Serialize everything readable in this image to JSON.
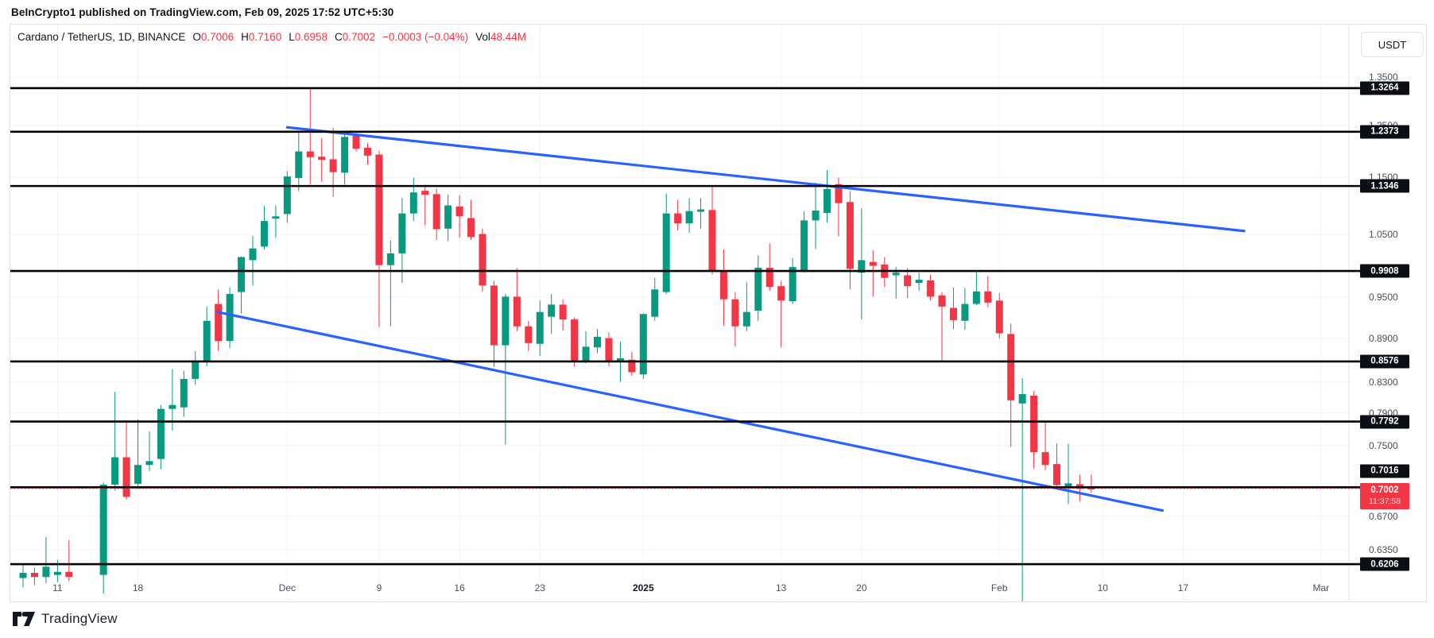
{
  "header": {
    "title": "BeInCrypto1 published on TradingView.com, Feb 09, 2025 17:52 UTC+5:30"
  },
  "attribution": {
    "brand": "TradingView"
  },
  "legend": {
    "title": "Cardano / TetherUS, 1D, BINANCE",
    "values": [
      {
        "label": "O",
        "value": "0.7006"
      },
      {
        "label": "H",
        "value": "0.7160"
      },
      {
        "label": "L",
        "value": "0.6958"
      },
      {
        "label": "C",
        "value": "0.7002"
      },
      {
        "label": "",
        "value": "−0.0003 (−0.04%)"
      },
      {
        "label": "Vol",
        "value": "48.44M"
      }
    ]
  },
  "price_scale": {
    "currency_button": "USDT",
    "ticks": [
      "1.3500",
      "1.2500",
      "1.1500",
      "1.0500",
      "0.9900",
      "0.9500",
      "0.8900",
      "0.8300",
      "0.7900",
      "0.7500",
      "0.6700",
      "0.6350"
    ],
    "current": {
      "price": "0.7002",
      "countdown": "11:37:58"
    }
  },
  "colors": {
    "up": "#089981",
    "down": "#f23645",
    "trendline": "#2962ff",
    "level": "#000000",
    "grid": "#f0f3fa",
    "border": "#e0e3eb",
    "current_line": "#f23645",
    "badge_bg": "#0c0e15"
  },
  "chart_data": {
    "type": "candlestick",
    "symbol": "ADAUSDT",
    "interval": "1D",
    "price_scale_type": "log",
    "visible_price_range": [
      0.5845,
      1.47
    ],
    "date_range": [
      "Nov 8 2024",
      "Mar 1 2025 (axis)"
    ],
    "grid": true,
    "time_labels": [
      {
        "label": "11",
        "day": 3
      },
      {
        "label": "18",
        "day": 10
      },
      {
        "label": "Dec",
        "day": 23
      },
      {
        "label": "9",
        "day": 31
      },
      {
        "label": "16",
        "day": 38
      },
      {
        "label": "23",
        "day": 45
      },
      {
        "label": "2025",
        "day": 54,
        "bold": true
      },
      {
        "label": "13",
        "day": 66
      },
      {
        "label": "20",
        "day": 73
      },
      {
        "label": "Feb",
        "day": 85
      },
      {
        "label": "10",
        "day": 94
      },
      {
        "label": "17",
        "day": 101
      },
      {
        "label": "Mar",
        "day": 113
      }
    ],
    "levels": [
      1.3264,
      1.2373,
      1.1346,
      0.9908,
      0.8576,
      0.7792,
      0.7016,
      0.6206
    ],
    "current_price": 0.7002,
    "trendlines": [
      {
        "name": "upper-descending",
        "d1": 23.0,
        "p1": 1.246,
        "d2": 106.3,
        "p2": 1.056
      },
      {
        "name": "lower-descending",
        "d1": 16.9,
        "p1": 0.928,
        "d2": 99.2,
        "p2": 0.676
      }
    ],
    "candles": [
      [
        "Nov 8",
        0.607,
        0.62,
        0.598,
        0.612
      ],
      [
        "Nov 9",
        0.612,
        0.617,
        0.6,
        0.608
      ],
      [
        "Nov 10",
        0.608,
        0.648,
        0.602,
        0.618
      ],
      [
        "Nov 11",
        0.61,
        0.625,
        0.603,
        0.613
      ],
      [
        "Nov 12",
        0.613,
        0.645,
        0.604,
        0.608
      ],
      [
        "Nov 13",
        0.582,
        0.584,
        0.556,
        0.565
      ],
      [
        "Nov 14",
        0.565,
        0.582,
        0.558,
        0.578
      ],
      [
        "Nov 15",
        0.61,
        0.707,
        0.592,
        0.7045
      ],
      [
        "Nov 16",
        0.7045,
        0.817,
        0.698,
        0.736
      ],
      [
        "Nov 17",
        0.736,
        0.778,
        0.688,
        0.691
      ],
      [
        "Nov 18",
        0.7055,
        0.782,
        0.7,
        0.727
      ],
      [
        "Nov 19",
        0.727,
        0.767,
        0.72,
        0.7315
      ],
      [
        "Nov 20",
        0.734,
        0.8,
        0.722,
        0.795
      ],
      [
        "Nov 21",
        0.795,
        0.847,
        0.768,
        0.8
      ],
      [
        "Nov 22",
        0.797,
        0.845,
        0.785,
        0.834
      ],
      [
        "Nov 23",
        0.834,
        0.872,
        0.826,
        0.858
      ],
      [
        "Nov 24",
        0.858,
        0.936,
        0.851,
        0.915
      ],
      [
        "Nov 25",
        0.94,
        0.962,
        0.872,
        0.886
      ],
      [
        "Nov 26",
        0.886,
        0.965,
        0.876,
        0.955
      ],
      [
        "Nov 27",
        0.958,
        1.014,
        0.926,
        1.013
      ],
      [
        "Nov 28",
        1.008,
        1.048,
        0.968,
        1.027
      ],
      [
        "Nov 29",
        1.03,
        1.099,
        1.025,
        1.073
      ],
      [
        "Nov 30",
        1.077,
        1.1,
        1.045,
        1.081
      ],
      [
        "Dec 1",
        1.085,
        1.162,
        1.07,
        1.152
      ],
      [
        "Dec 2",
        1.149,
        1.2373,
        1.125,
        1.199
      ],
      [
        "Dec 3",
        1.199,
        1.3264,
        1.137,
        1.188
      ],
      [
        "Dec 4",
        1.189,
        1.225,
        1.142,
        1.183
      ],
      [
        "Dec 5",
        1.184,
        1.245,
        1.115,
        1.16
      ],
      [
        "Dec 6",
        1.159,
        1.232,
        1.137,
        1.227
      ],
      [
        "Dec 7",
        1.229,
        1.235,
        1.199,
        1.204
      ],
      [
        "Dec 8",
        1.206,
        1.215,
        1.174,
        1.191
      ],
      [
        "Dec 9",
        1.193,
        1.2,
        0.906,
        1.0
      ],
      [
        "Dec 10",
        1.0,
        1.04,
        0.907,
        1.019
      ],
      [
        "Dec 11",
        1.019,
        1.113,
        0.972,
        1.086
      ],
      [
        "Dec 12",
        1.086,
        1.15,
        1.073,
        1.123
      ],
      [
        "Dec 13",
        1.126,
        1.137,
        1.066,
        1.119
      ],
      [
        "Dec 14",
        1.12,
        1.13,
        1.041,
        1.059
      ],
      [
        "Dec 15",
        1.06,
        1.119,
        1.039,
        1.1
      ],
      [
        "Dec 16",
        1.098,
        1.118,
        1.045,
        1.081
      ],
      [
        "Dec 17",
        1.078,
        1.11,
        1.041,
        1.046
      ],
      [
        "Dec 18",
        1.051,
        1.06,
        0.959,
        0.968
      ],
      [
        "Dec 19",
        0.968,
        0.975,
        0.85,
        0.88
      ],
      [
        "Dec 20",
        0.88,
        0.955,
        0.751,
        0.951
      ],
      [
        "Dec 21",
        0.951,
        0.995,
        0.9,
        0.907
      ],
      [
        "Dec 22",
        0.907,
        0.915,
        0.872,
        0.883
      ],
      [
        "Dec 23",
        0.882,
        0.945,
        0.865,
        0.928
      ],
      [
        "Dec 24",
        0.921,
        0.955,
        0.896,
        0.939
      ],
      [
        "Dec 25",
        0.939,
        0.947,
        0.901,
        0.917
      ],
      [
        "Dec 26",
        0.917,
        0.92,
        0.851,
        0.858
      ],
      [
        "Dec 27",
        0.858,
        0.9,
        0.855,
        0.878
      ],
      [
        "Dec 28",
        0.877,
        0.903,
        0.869,
        0.892
      ],
      [
        "Dec 29",
        0.89,
        0.898,
        0.851,
        0.858
      ],
      [
        "Dec 30",
        0.858,
        0.885,
        0.83,
        0.862
      ],
      [
        "Dec 31",
        0.86,
        0.871,
        0.838,
        0.843
      ],
      [
        "Jan 1",
        0.84,
        0.926,
        0.834,
        0.925
      ],
      [
        "Jan 2",
        0.921,
        0.98,
        0.915,
        0.962
      ],
      [
        "Jan 3",
        0.958,
        1.121,
        0.955,
        1.086
      ],
      [
        "Jan 4",
        1.086,
        1.11,
        1.057,
        1.069
      ],
      [
        "Jan 5",
        1.069,
        1.113,
        1.053,
        1.09
      ],
      [
        "Jan 6",
        1.089,
        1.113,
        1.06,
        1.093
      ],
      [
        "Jan 7",
        1.092,
        1.135,
        0.985,
        0.991
      ],
      [
        "Jan 8",
        0.991,
        1.026,
        0.908,
        0.947
      ],
      [
        "Jan 9",
        0.947,
        0.958,
        0.878,
        0.907
      ],
      [
        "Jan 10",
        0.907,
        0.973,
        0.9,
        0.928
      ],
      [
        "Jan 11",
        0.93,
        1.016,
        0.915,
        0.996
      ],
      [
        "Jan 12",
        0.996,
        1.035,
        0.96,
        0.966
      ],
      [
        "Jan 13",
        0.967,
        0.975,
        0.877,
        0.945
      ],
      [
        "Jan 14",
        0.944,
        1.011,
        0.94,
        0.997
      ],
      [
        "Jan 15",
        0.991,
        1.09,
        0.988,
        1.074
      ],
      [
        "Jan 16",
        1.074,
        1.141,
        1.026,
        1.091
      ],
      [
        "Jan 17",
        1.087,
        1.164,
        1.07,
        1.129
      ],
      [
        "Jan 18",
        1.138,
        1.15,
        1.047,
        1.104
      ],
      [
        "Jan 19",
        1.106,
        1.125,
        0.962,
        0.994
      ],
      [
        "Jan 20",
        0.988,
        1.095,
        0.917,
        1.008
      ],
      [
        "Jan 21",
        1.005,
        1.024,
        0.951,
        0.999
      ],
      [
        "Jan 22",
        1.001,
        1.013,
        0.966,
        0.98
      ],
      [
        "Jan 23",
        0.984,
        0.997,
        0.948,
        0.988
      ],
      [
        "Jan 24",
        0.984,
        0.995,
        0.949,
        0.967
      ],
      [
        "Jan 25",
        0.972,
        0.988,
        0.96,
        0.977
      ],
      [
        "Jan 26",
        0.976,
        0.985,
        0.945,
        0.951
      ],
      [
        "Jan 27",
        0.953,
        0.958,
        0.8576,
        0.936
      ],
      [
        "Jan 28",
        0.934,
        0.965,
        0.903,
        0.916
      ],
      [
        "Jan 29",
        0.915,
        0.964,
        0.902,
        0.94
      ],
      [
        "Jan 30",
        0.94,
        0.99,
        0.938,
        0.959
      ],
      [
        "Jan 31",
        0.959,
        0.983,
        0.935,
        0.942
      ],
      [
        "Feb 1",
        0.945,
        0.956,
        0.89,
        0.897
      ],
      [
        "Feb 2",
        0.896,
        0.911,
        0.748,
        0.806
      ],
      [
        "Feb 3",
        0.802,
        0.835,
        0.538,
        0.814
      ],
      [
        "Feb 4",
        0.812,
        0.818,
        0.723,
        0.742
      ],
      [
        "Feb 5",
        0.742,
        0.779,
        0.721,
        0.727
      ],
      [
        "Feb 6",
        0.728,
        0.752,
        0.699,
        0.704
      ],
      [
        "Feb 7",
        0.701,
        0.752,
        0.683,
        0.706
      ],
      [
        "Feb 8",
        0.705,
        0.716,
        0.686,
        0.7
      ],
      [
        "Feb 9",
        0.7006,
        0.716,
        0.6958,
        0.7002
      ]
    ]
  }
}
